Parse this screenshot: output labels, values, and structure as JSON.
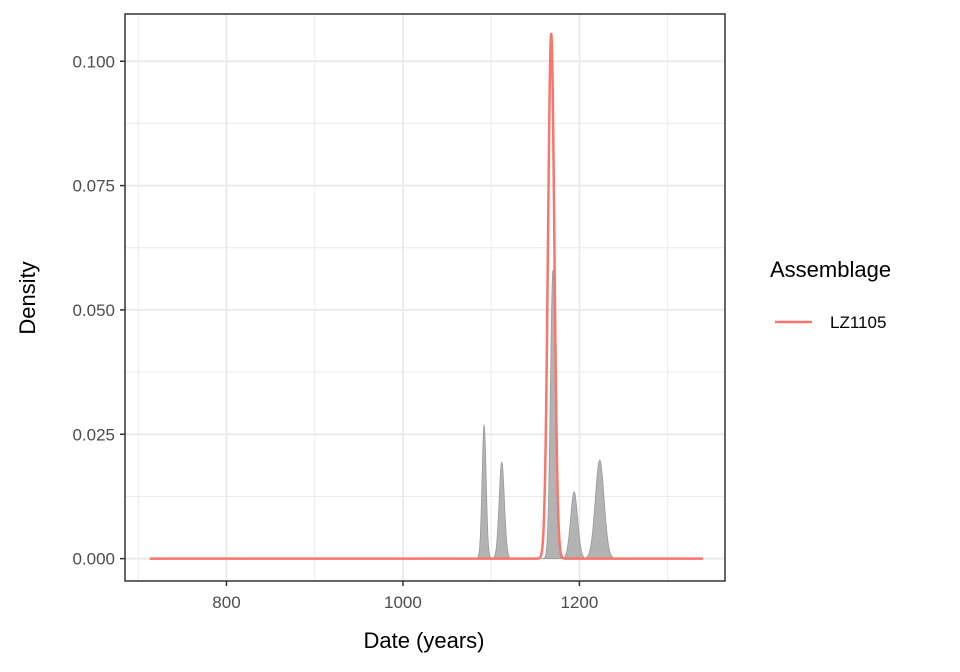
{
  "chart_data": {
    "type": "area",
    "xlabel": "Date (years)",
    "ylabel": "Density",
    "xlim": [
      685,
      1365
    ],
    "ylim": [
      -0.0045,
      0.1095
    ],
    "x_ticks": [
      800,
      1000,
      1200
    ],
    "x_tick_labels": [
      "800",
      "1000",
      "1200"
    ],
    "y_ticks": [
      0,
      0.025,
      0.05,
      0.075,
      0.1
    ],
    "y_tick_labels": [
      "0.000",
      "0.025",
      "0.050",
      "0.075",
      "0.100"
    ],
    "grid": true,
    "legend": {
      "title": "Assemblage",
      "position": "right",
      "entries": [
        {
          "label": "LZ1105",
          "color": "#F8766D"
        }
      ]
    },
    "background_densities": {
      "color": "#A6A6A6",
      "components": [
        {
          "mean": 1092,
          "peak": 0.0268,
          "sd": 2.3
        },
        {
          "mean": 1112,
          "peak": 0.0194,
          "sd": 3.0
        },
        {
          "mean": 1170,
          "peak": 0.058,
          "sd": 2.8
        },
        {
          "mean": 1194,
          "peak": 0.0134,
          "sd": 4.0
        },
        {
          "mean": 1223,
          "peak": 0.0198,
          "sd": 5.0
        }
      ]
    },
    "series": [
      {
        "name": "LZ1105",
        "color": "#F8766D",
        "x_range": [
          713,
          1340
        ],
        "mean": 1168,
        "peak": 0.1055,
        "sd": 3.6
      }
    ]
  }
}
